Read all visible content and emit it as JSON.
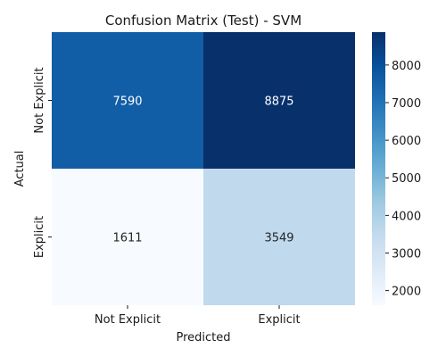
{
  "chart_data": {
    "type": "heatmap",
    "title": "Confusion Matrix (Test) - SVM",
    "xlabel": "Predicted",
    "ylabel": "Actual",
    "x_categories": [
      "Not Explicit",
      "Explicit"
    ],
    "y_categories": [
      "Not Explicit",
      "Explicit"
    ],
    "values": [
      [
        7590,
        8875
      ],
      [
        1611,
        3549
      ]
    ],
    "colormap": "Blues",
    "colorbar": {
      "vmin": 1611,
      "vmax": 8875,
      "ticks": [
        2000,
        3000,
        4000,
        5000,
        6000,
        7000,
        8000
      ]
    },
    "colors": {
      "low": "#f7fbff",
      "high": "#08306b",
      "text_dark": "#262626",
      "text_light": "#ffffff"
    }
  }
}
